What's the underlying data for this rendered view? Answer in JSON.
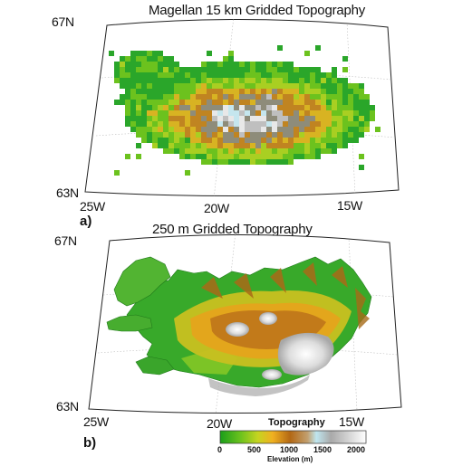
{
  "panel_a": {
    "label": "a)",
    "title": "Magellan 15 km Gridded Topography",
    "lat_top": "67N",
    "lat_bottom": "63N",
    "lon_labels": [
      "25W",
      "20W",
      "15W"
    ]
  },
  "panel_b": {
    "label": "b)",
    "title": "250 m Gridded Topography",
    "lat_top": "67N",
    "lat_bottom": "63N",
    "lon_labels": [
      "25W",
      "20W",
      "15W"
    ]
  },
  "colorbar": {
    "title": "Topography",
    "axis_label": "Elevation (m)",
    "ticks": [
      "0",
      "500",
      "1000",
      "1500",
      "2000"
    ],
    "range": [
      0,
      2000
    ],
    "colors": [
      "#1a9e1a",
      "#9ad21e",
      "#e9b020",
      "#b06a14",
      "#a0a0a0",
      "#ffffff"
    ]
  }
}
